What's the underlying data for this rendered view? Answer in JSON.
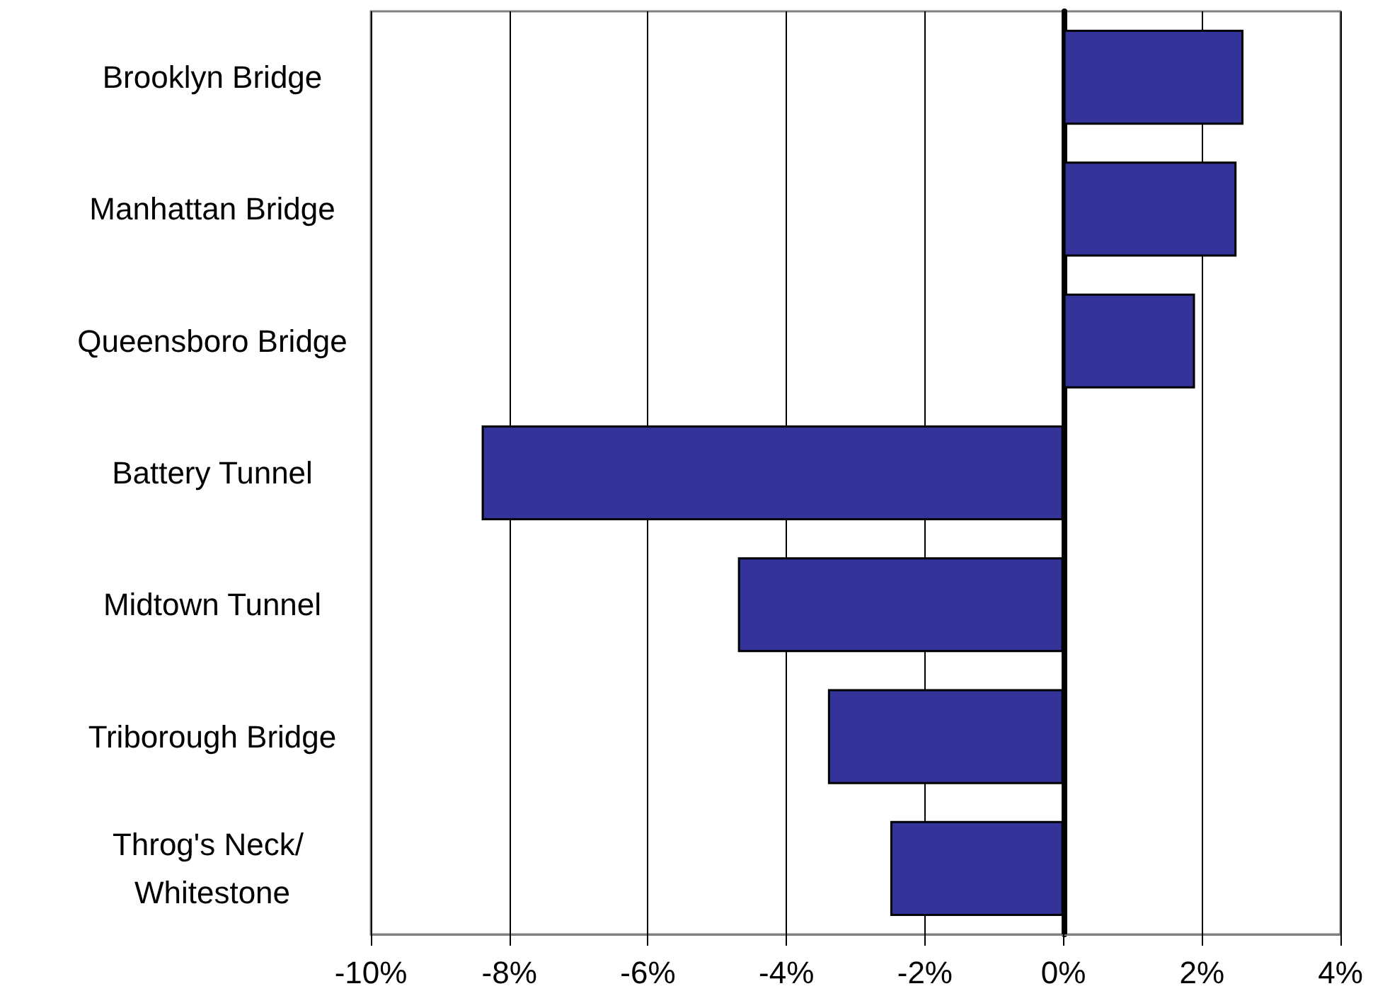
{
  "chart_data": {
    "type": "bar",
    "orientation": "horizontal",
    "categories": [
      "Brooklyn Bridge",
      "Manhattan Bridge",
      "Queensboro Bridge",
      "Battery Tunnel",
      "Midtown Tunnel",
      "Triborough Bridge",
      "Throg's Neck/ Whitestone"
    ],
    "values": [
      2.6,
      2.5,
      1.9,
      -8.4,
      -4.7,
      -3.4,
      -2.5
    ],
    "color": "#333399",
    "xlim": [
      -10,
      4
    ],
    "xticks": [
      {
        "value": -10,
        "label": "-10%"
      },
      {
        "value": -8,
        "label": "-8%"
      },
      {
        "value": -6,
        "label": "-6%"
      },
      {
        "value": -4,
        "label": "-4%"
      },
      {
        "value": -2,
        "label": "-2%"
      },
      {
        "value": 0,
        "label": "0%"
      },
      {
        "value": 2,
        "label": "2%"
      },
      {
        "value": 4,
        "label": "4%"
      }
    ],
    "grid": "x"
  }
}
